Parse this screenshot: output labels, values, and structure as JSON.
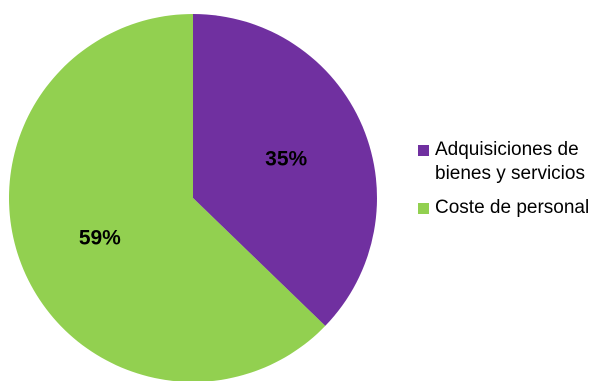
{
  "chart_data": {
    "type": "pie",
    "title": "",
    "legend_position": "right",
    "slices": [
      {
        "label": "Adquisiciones de bienes y servicios",
        "value": 35,
        "value_label": "35%",
        "color": "#7030A0"
      },
      {
        "label": "Coste de personal",
        "value": 59,
        "value_label": "59%",
        "color": "#92D050"
      }
    ]
  }
}
